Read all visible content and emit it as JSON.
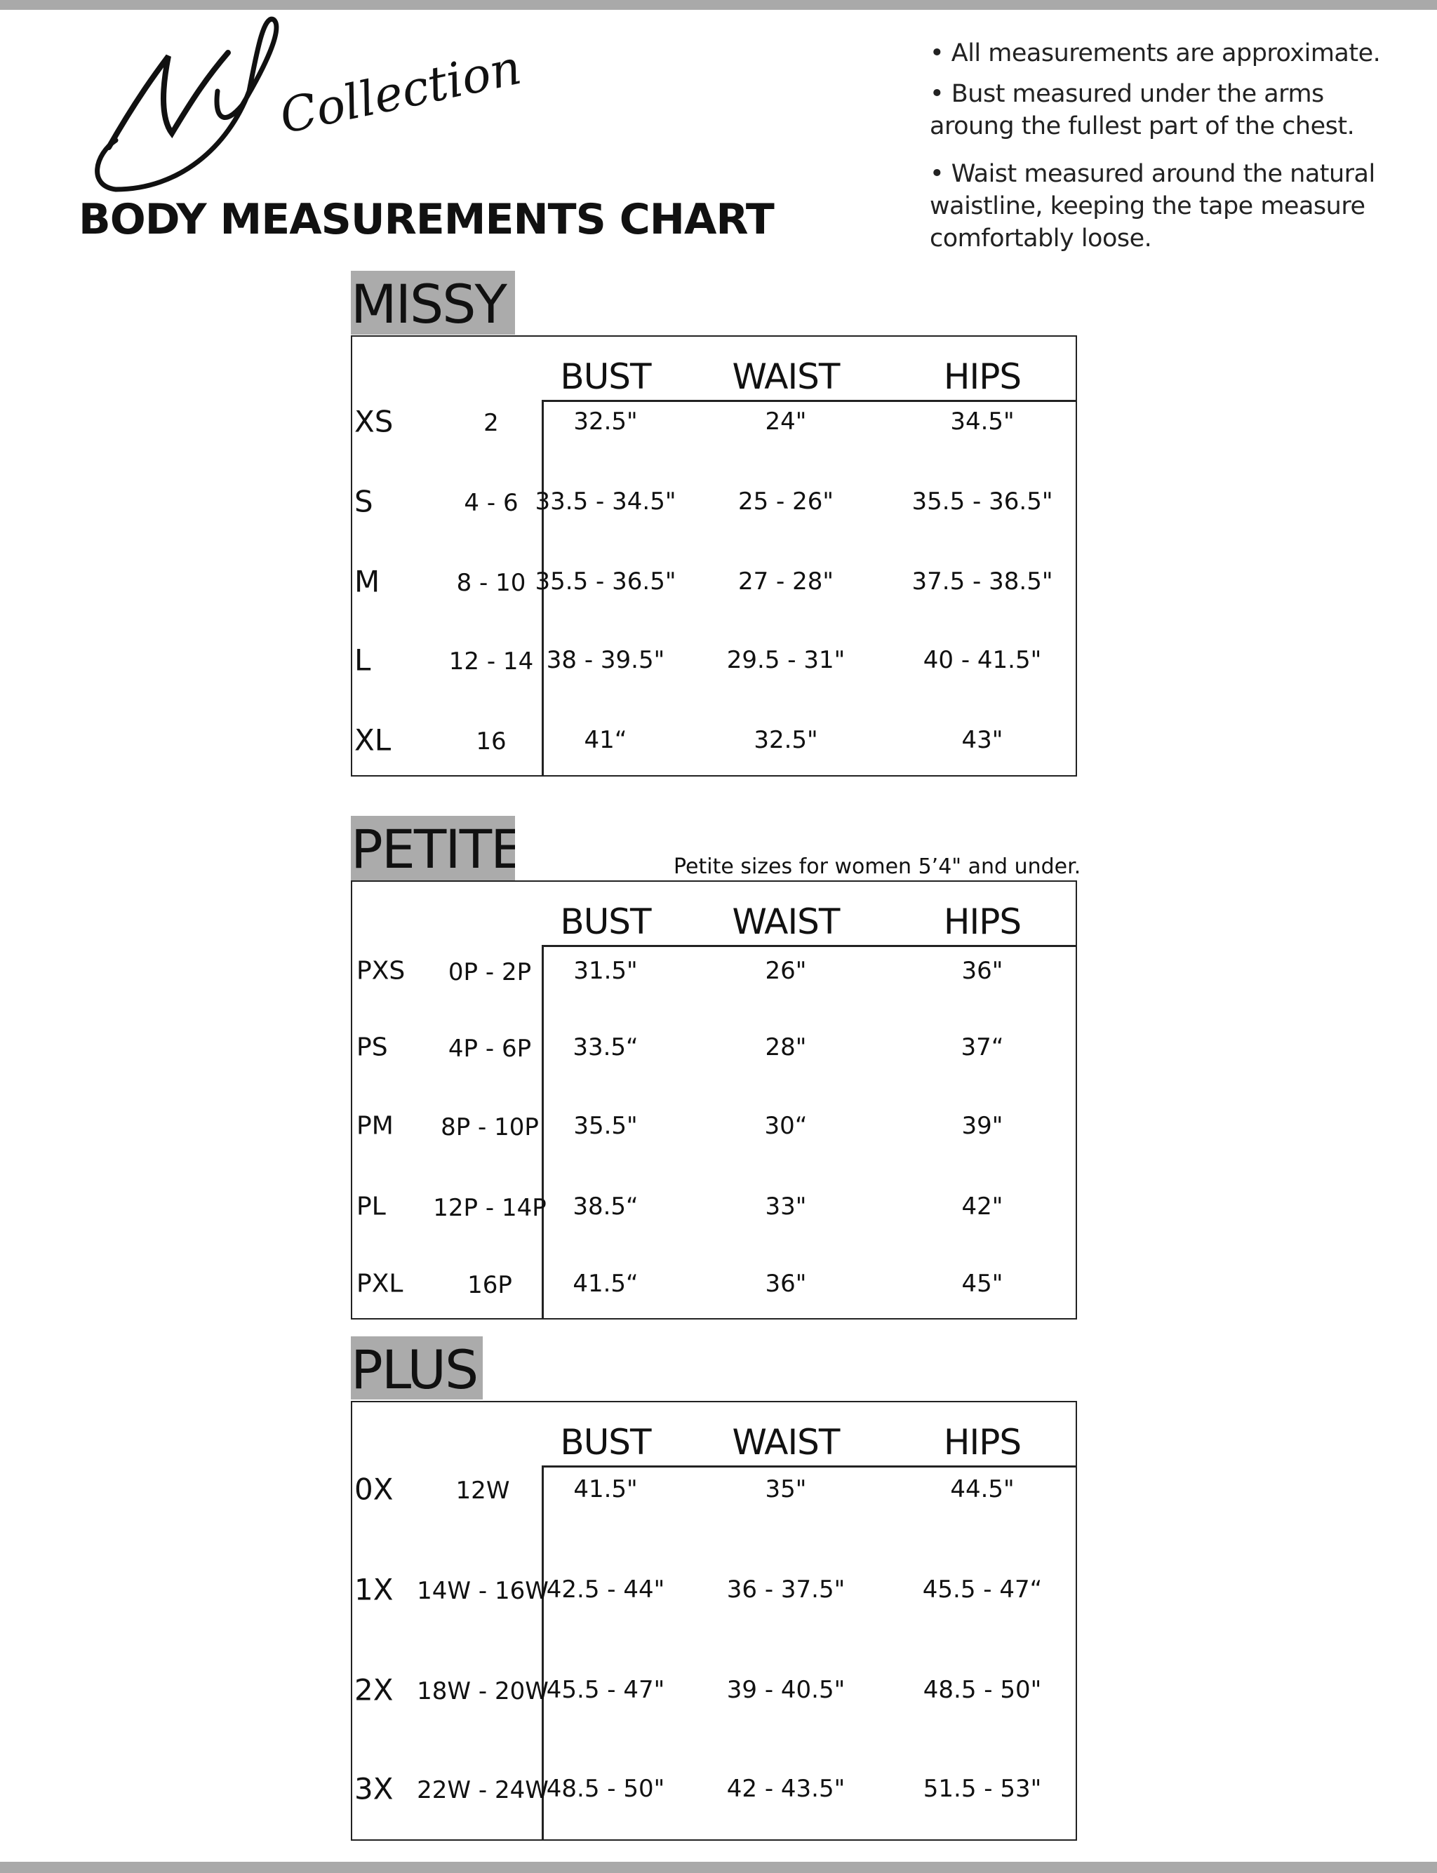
{
  "logo": {
    "text_ny": "NY",
    "text_collection": "Collection"
  },
  "title": "BODY MEASUREMENTS CHART",
  "notes": [
    "• All measurements are approximate.",
    "• Bust measured under the arms",
    "aroung the fullest part of the chest.",
    "• Waist measured around the natural",
    "waistline, keeping the tape measure",
    "comfortably loose."
  ],
  "columns": [
    "BUST",
    "WAIST",
    "HIPS"
  ],
  "sections": [
    {
      "label": "MISSY",
      "note": "",
      "rows": [
        {
          "size": "XS",
          "num": "2",
          "bust": "32.5\"",
          "waist": "24\"",
          "hips": "34.5\""
        },
        {
          "size": "S",
          "num": "4 - 6",
          "bust": "33.5 - 34.5\"",
          "waist": "25 - 26\"",
          "hips": "35.5 - 36.5\""
        },
        {
          "size": "M",
          "num": "8 - 10",
          "bust": "35.5 - 36.5\"",
          "waist": "27 - 28\"",
          "hips": "37.5 - 38.5\""
        },
        {
          "size": "L",
          "num": "12 - 14",
          "bust": "38 - 39.5\"",
          "waist": "29.5 - 31\"",
          "hips": "40 - 41.5\""
        },
        {
          "size": "XL",
          "num": "16",
          "bust": "41“",
          "waist": "32.5\"",
          "hips": "43\""
        }
      ]
    },
    {
      "label": "PETITE",
      "note": "Petite sizes for women 5’4\" and under.",
      "rows": [
        {
          "size": "PXS",
          "num": "0P - 2P",
          "bust": "31.5\"",
          "waist": "26\"",
          "hips": "36\""
        },
        {
          "size": "PS",
          "num": "4P - 6P",
          "bust": "33.5“",
          "waist": "28\"",
          "hips": "37“"
        },
        {
          "size": "PM",
          "num": "8P - 10P",
          "bust": "35.5\"",
          "waist": "30“",
          "hips": "39\""
        },
        {
          "size": "PL",
          "num": "12P - 14P",
          "bust": "38.5“",
          "waist": "33\"",
          "hips": "42\""
        },
        {
          "size": "PXL",
          "num": "16P",
          "bust": "41.5“",
          "waist": "36\"",
          "hips": "45\""
        }
      ]
    },
    {
      "label": "PLUS",
      "note": "",
      "rows": [
        {
          "size": "0X",
          "num": "12W",
          "bust": "41.5\"",
          "waist": "35\"",
          "hips": "44.5\""
        },
        {
          "size": "1X",
          "num": "14W - 16W",
          "bust": "42.5 - 44\"",
          "waist": "36 - 37.5\"",
          "hips": "45.5 - 47“"
        },
        {
          "size": "2X",
          "num": "18W - 20W",
          "bust": "45.5 - 47\"",
          "waist": "39 - 40.5\"",
          "hips": "48.5 - 50\""
        },
        {
          "size": "3X",
          "num": "22W - 24W",
          "bust": "48.5 - 50\"",
          "waist": "42 - 43.5\"",
          "hips": "51.5 - 53\""
        }
      ]
    }
  ],
  "colors": {
    "label_bg": "#ababab",
    "frame_bar": "#a9a9a9",
    "text": "#111111"
  }
}
